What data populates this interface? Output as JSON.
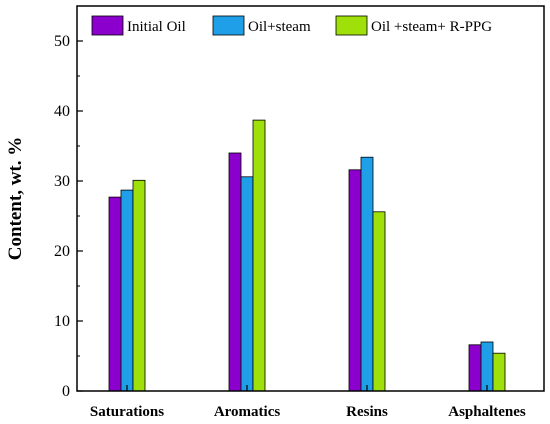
{
  "chart_data": {
    "type": "bar",
    "categories": [
      "Saturations",
      "Aromatics",
      "Resins",
      "Asphaltenes"
    ],
    "series": [
      {
        "name": "Initial Oil",
        "color": "#8B00CC",
        "values": [
          27.7,
          34.0,
          31.6,
          6.6
        ]
      },
      {
        "name": "Oil+steam",
        "color": "#1F9FE8",
        "values": [
          28.7,
          30.6,
          33.4,
          7.0
        ]
      },
      {
        "name": "Oil +steam+ R-PPG",
        "color": "#9FE00A",
        "values": [
          30.1,
          38.7,
          25.6,
          5.4
        ]
      }
    ],
    "ylabel": "Content, wt. %",
    "xlabel": "",
    "ylim": [
      0,
      55
    ],
    "yticks": [
      0,
      10,
      20,
      30,
      40,
      50
    ],
    "grid": false,
    "legend_position": "top"
  }
}
